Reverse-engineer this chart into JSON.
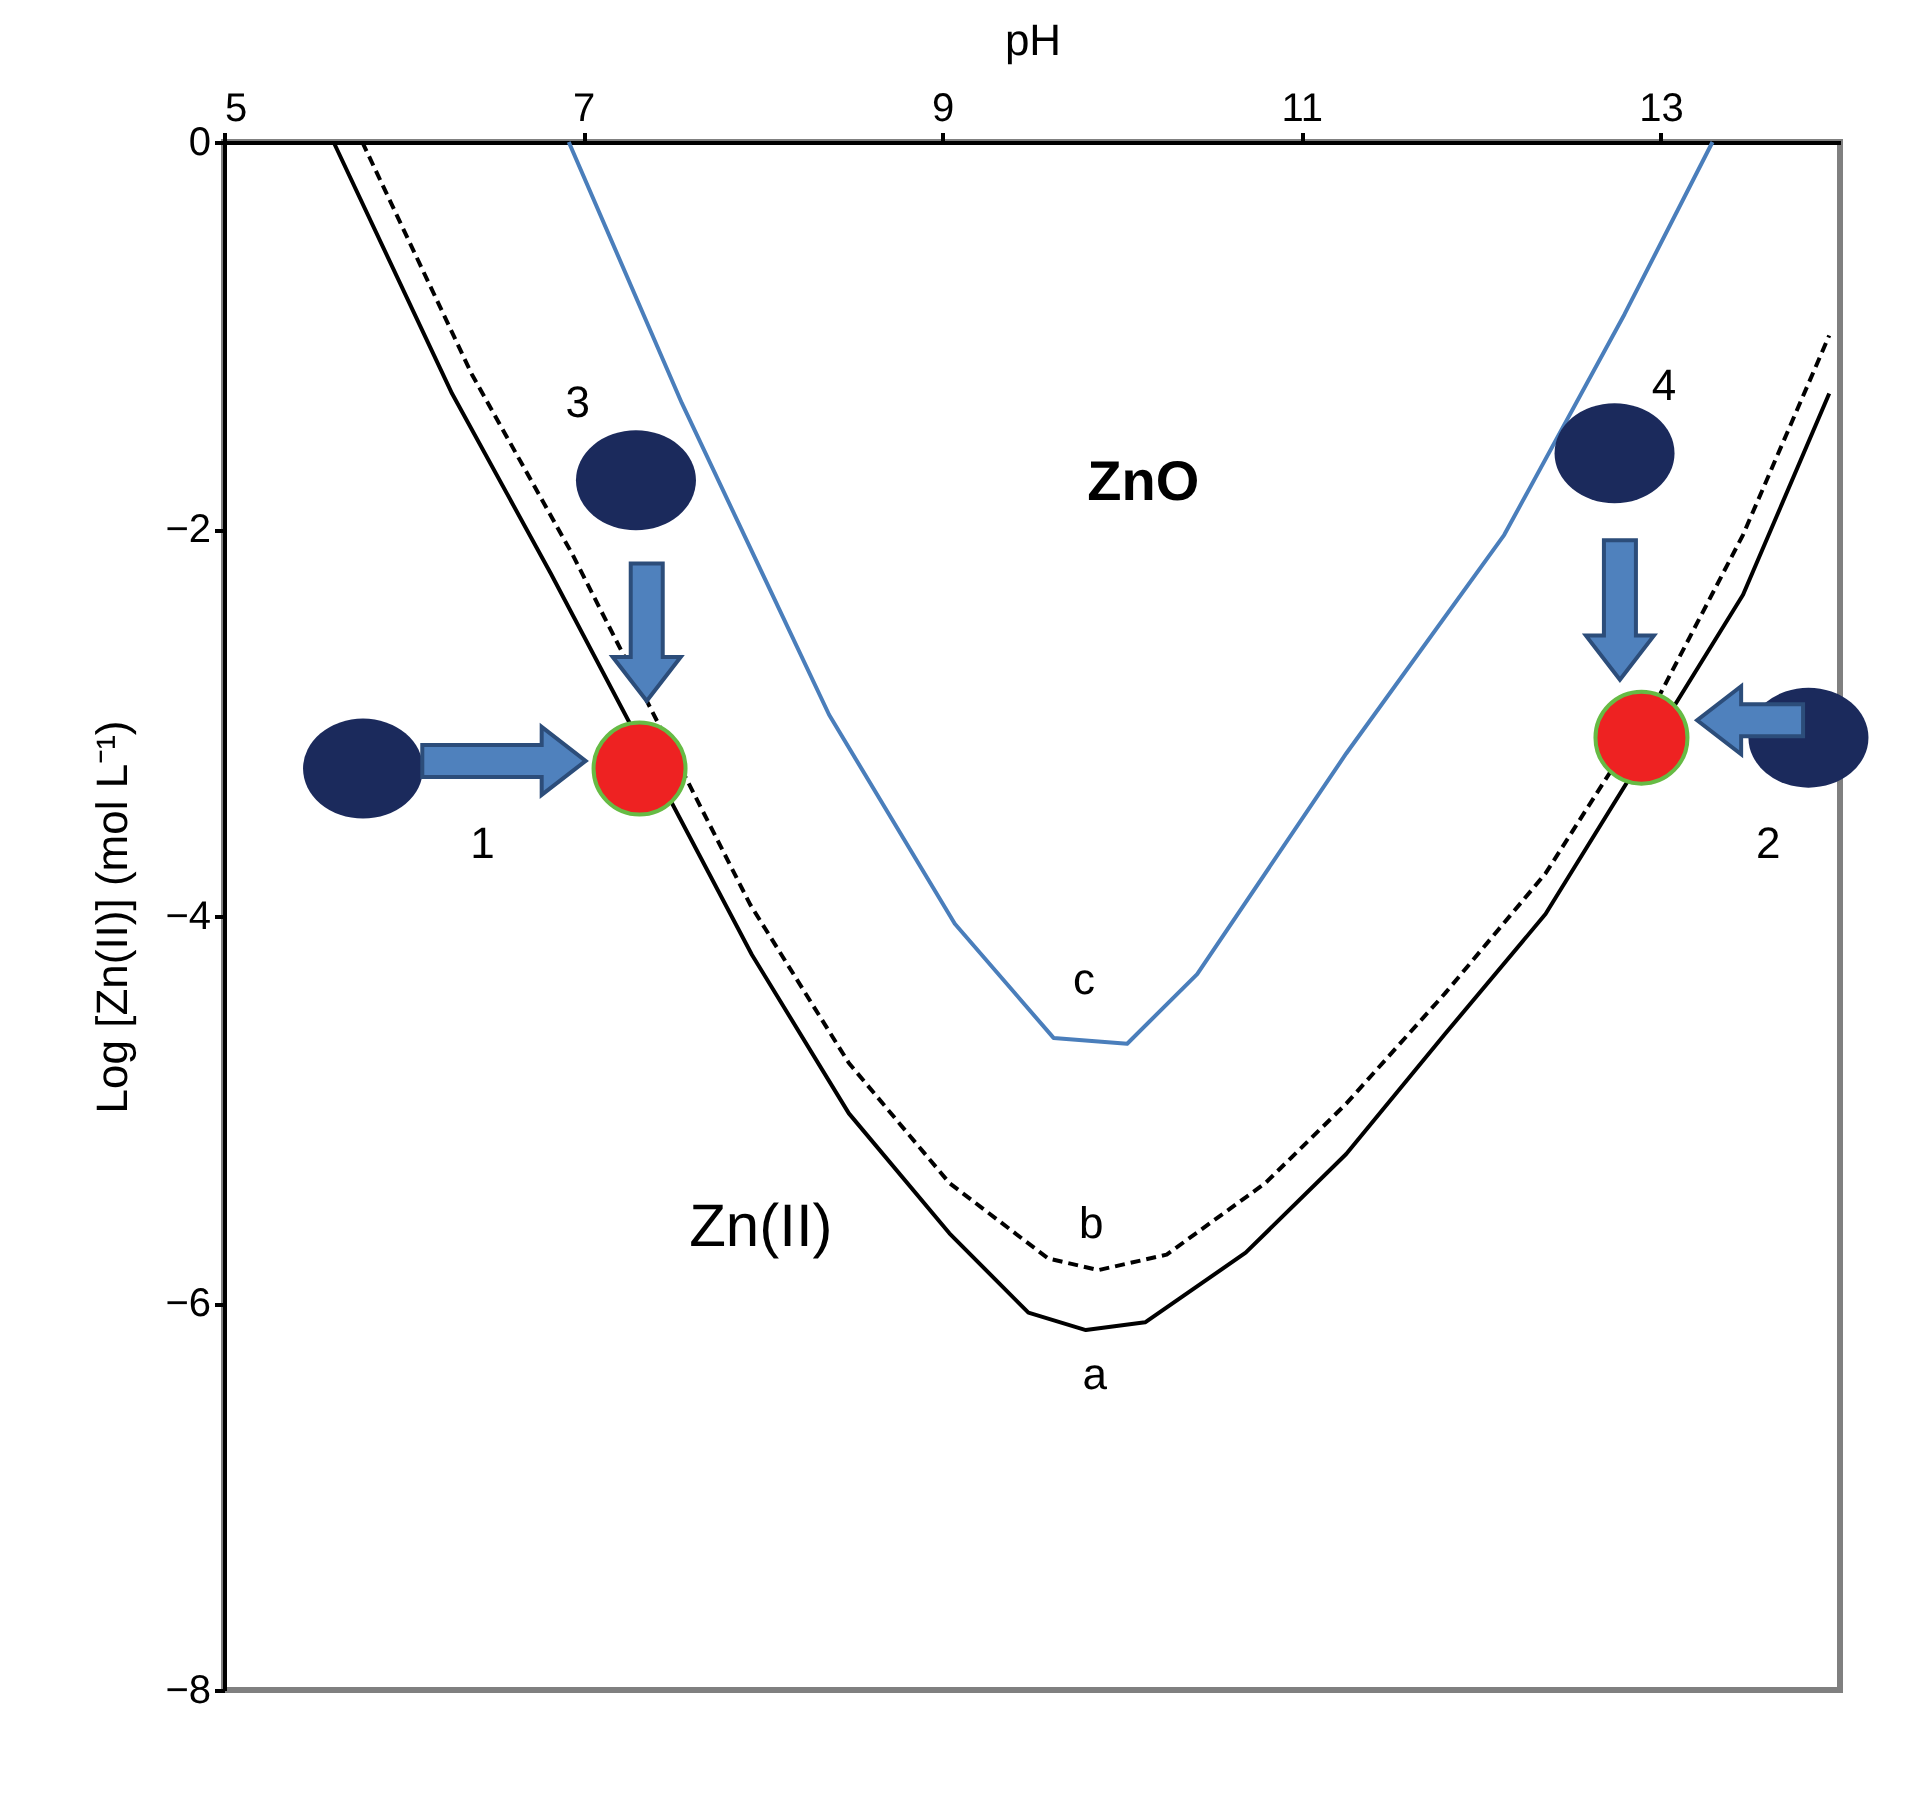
{
  "chart_data": {
    "type": "line",
    "xlabel": "pH",
    "ylabel": "Log [Zn(II)] (mol L⁻¹)",
    "xlim": [
      5,
      14
    ],
    "ylim": [
      -8,
      0
    ],
    "xticks": [
      5,
      7,
      9,
      11,
      13
    ],
    "yticks": [
      0,
      -2,
      -4,
      -6,
      -8
    ],
    "grid": false,
    "legend": false,
    "marker": "none",
    "series": [
      {
        "color": "#000000",
        "line_style": "solid",
        "x": [
          5.61,
          6.27,
          6.82,
          7.94,
          8.48,
          9.04,
          9.48,
          9.8,
          10.13,
          10.69,
          11.25,
          11.8,
          12.36,
          13.46,
          13.94
        ],
        "values": [
          0,
          -1.3,
          -2.23,
          -4.2,
          -5.02,
          -5.64,
          -6.05,
          -6.14,
          -6.1,
          -5.74,
          -5.23,
          -4.61,
          -3.99,
          -2.34,
          -1.3
        ]
      },
      {
        "color": "#000000",
        "line_style": "dashed",
        "x": [
          5.77,
          6.38,
          6.94,
          7.93,
          8.48,
          9.04,
          9.59,
          9.87,
          10.25,
          10.8,
          11.25,
          11.8,
          12.36,
          13,
          13.46,
          13.94
        ],
        "values": [
          0,
          -1.2,
          -2.13,
          -3.94,
          -4.76,
          -5.38,
          -5.77,
          -5.83,
          -5.75,
          -5.38,
          -4.97,
          -4.4,
          -3.78,
          -2.85,
          -2.03,
          -1.0
        ]
      },
      {
        "color": "#4a7ebb",
        "line_style": "solid",
        "x": [
          6.92,
          7.55,
          8.37,
          9.07,
          9.62,
          10.03,
          10.42,
          11.25,
          12.13,
          12.8,
          13.29
        ],
        "values": [
          0,
          -1.35,
          -2.96,
          -4.04,
          -4.63,
          -4.66,
          -4.3,
          -3.16,
          -2.03,
          -0.89,
          0
        ]
      }
    ],
    "annotations": [
      "ZnO",
      "Zn(II)",
      "c",
      "b",
      "a",
      "1",
      "2",
      "3",
      "4"
    ]
  }
}
